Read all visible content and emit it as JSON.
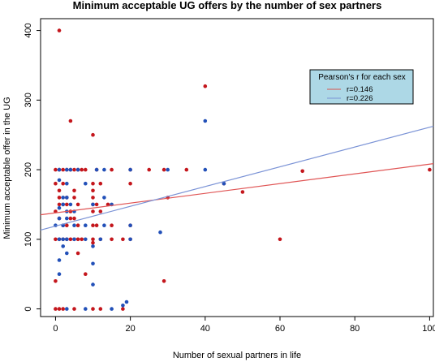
{
  "chart_data": {
    "type": "scatter",
    "title": "Minimum acceptable UG offers by the number of sex partners",
    "xlabel": "Number of sexual partners in life",
    "ylabel": "Minimum acceptable offer in the UG",
    "xlim": [
      -4,
      101
    ],
    "ylim": [
      -11,
      417
    ],
    "x_ticks": [
      0,
      20,
      40,
      60,
      80,
      100
    ],
    "y_ticks": [
      0,
      100,
      200,
      300,
      400
    ],
    "grid": false,
    "legend": {
      "title": "Pearson's r for each sex",
      "placement": "top-right",
      "entries": [
        {
          "label": "r=0.146",
          "color": "#d9534f"
        },
        {
          "label": "r=0.226",
          "color": "#7b93d6"
        }
      ]
    },
    "series": [
      {
        "color": "#c4161c",
        "line_color": "#e05555",
        "fit": {
          "intercept": 138,
          "slope": 0.7
        },
        "points": [
          [
            1,
            400
          ],
          [
            40,
            320
          ],
          [
            4,
            270
          ],
          [
            10,
            250
          ],
          [
            0,
            200
          ],
          [
            1,
            200
          ],
          [
            2,
            200
          ],
          [
            3,
            200
          ],
          [
            4,
            200
          ],
          [
            5,
            200
          ],
          [
            6,
            200
          ],
          [
            7,
            200
          ],
          [
            8,
            200
          ],
          [
            11,
            200
          ],
          [
            15,
            200
          ],
          [
            20,
            200
          ],
          [
            25,
            200
          ],
          [
            29,
            200
          ],
          [
            35,
            200
          ],
          [
            66,
            198
          ],
          [
            100,
            200
          ],
          [
            0,
            180
          ],
          [
            2,
            180
          ],
          [
            10,
            180
          ],
          [
            12,
            180
          ],
          [
            20,
            180
          ],
          [
            45,
            180
          ],
          [
            1,
            170
          ],
          [
            5,
            170
          ],
          [
            10,
            170
          ],
          [
            50,
            168
          ],
          [
            1,
            160
          ],
          [
            3,
            160
          ],
          [
            5,
            160
          ],
          [
            10,
            160
          ],
          [
            30,
            160
          ],
          [
            1,
            150
          ],
          [
            2,
            150
          ],
          [
            3,
            150
          ],
          [
            6,
            150
          ],
          [
            10,
            150
          ],
          [
            11,
            150
          ],
          [
            14,
            150
          ],
          [
            0,
            140
          ],
          [
            4,
            140
          ],
          [
            10,
            140
          ],
          [
            12,
            140
          ],
          [
            1,
            130
          ],
          [
            4,
            130
          ],
          [
            5,
            130
          ],
          [
            2,
            120
          ],
          [
            3,
            120
          ],
          [
            6,
            120
          ],
          [
            10,
            120
          ],
          [
            11,
            120
          ],
          [
            15,
            120
          ],
          [
            20,
            120
          ],
          [
            0,
            100
          ],
          [
            1,
            100
          ],
          [
            2,
            100
          ],
          [
            3,
            100
          ],
          [
            4,
            100
          ],
          [
            5,
            100
          ],
          [
            6,
            100
          ],
          [
            7,
            100
          ],
          [
            10,
            100
          ],
          [
            12,
            100
          ],
          [
            15,
            100
          ],
          [
            18,
            100
          ],
          [
            20,
            100
          ],
          [
            60,
            100
          ],
          [
            10,
            95
          ],
          [
            6,
            80
          ],
          [
            8,
            50
          ],
          [
            29,
            40
          ],
          [
            0,
            40
          ],
          [
            0,
            0
          ],
          [
            1,
            0
          ],
          [
            2,
            0
          ],
          [
            5,
            0
          ],
          [
            10,
            0
          ],
          [
            12,
            0
          ],
          [
            18,
            0
          ]
        ]
      },
      {
        "color": "#2250b8",
        "line_color": "#7b93d6",
        "fit": {
          "intercept": 119,
          "slope": 1.42
        },
        "points": [
          [
            40,
            270
          ],
          [
            1,
            200
          ],
          [
            3,
            200
          ],
          [
            4,
            200
          ],
          [
            6,
            200
          ],
          [
            11,
            200
          ],
          [
            13,
            200
          ],
          [
            20,
            200
          ],
          [
            30,
            200
          ],
          [
            40,
            200
          ],
          [
            1,
            185
          ],
          [
            3,
            180
          ],
          [
            8,
            180
          ],
          [
            45,
            180
          ],
          [
            2,
            160
          ],
          [
            3,
            160
          ],
          [
            13,
            160
          ],
          [
            15,
            150
          ],
          [
            2,
            150
          ],
          [
            4,
            150
          ],
          [
            10,
            150
          ],
          [
            1,
            145
          ],
          [
            3,
            140
          ],
          [
            5,
            140
          ],
          [
            1,
            130
          ],
          [
            3,
            130
          ],
          [
            0,
            120
          ],
          [
            2,
            120
          ],
          [
            5,
            120
          ],
          [
            8,
            120
          ],
          [
            13,
            120
          ],
          [
            20,
            120
          ],
          [
            28,
            110
          ],
          [
            1,
            100
          ],
          [
            2,
            100
          ],
          [
            3,
            100
          ],
          [
            5,
            100
          ],
          [
            8,
            100
          ],
          [
            12,
            100
          ],
          [
            20,
            100
          ],
          [
            2,
            90
          ],
          [
            10,
            90
          ],
          [
            3,
            80
          ],
          [
            1,
            70
          ],
          [
            10,
            65
          ],
          [
            1,
            50
          ],
          [
            10,
            35
          ],
          [
            19,
            10
          ],
          [
            18,
            5
          ],
          [
            3,
            0
          ],
          [
            8,
            0
          ],
          [
            15,
            0
          ]
        ]
      }
    ]
  }
}
